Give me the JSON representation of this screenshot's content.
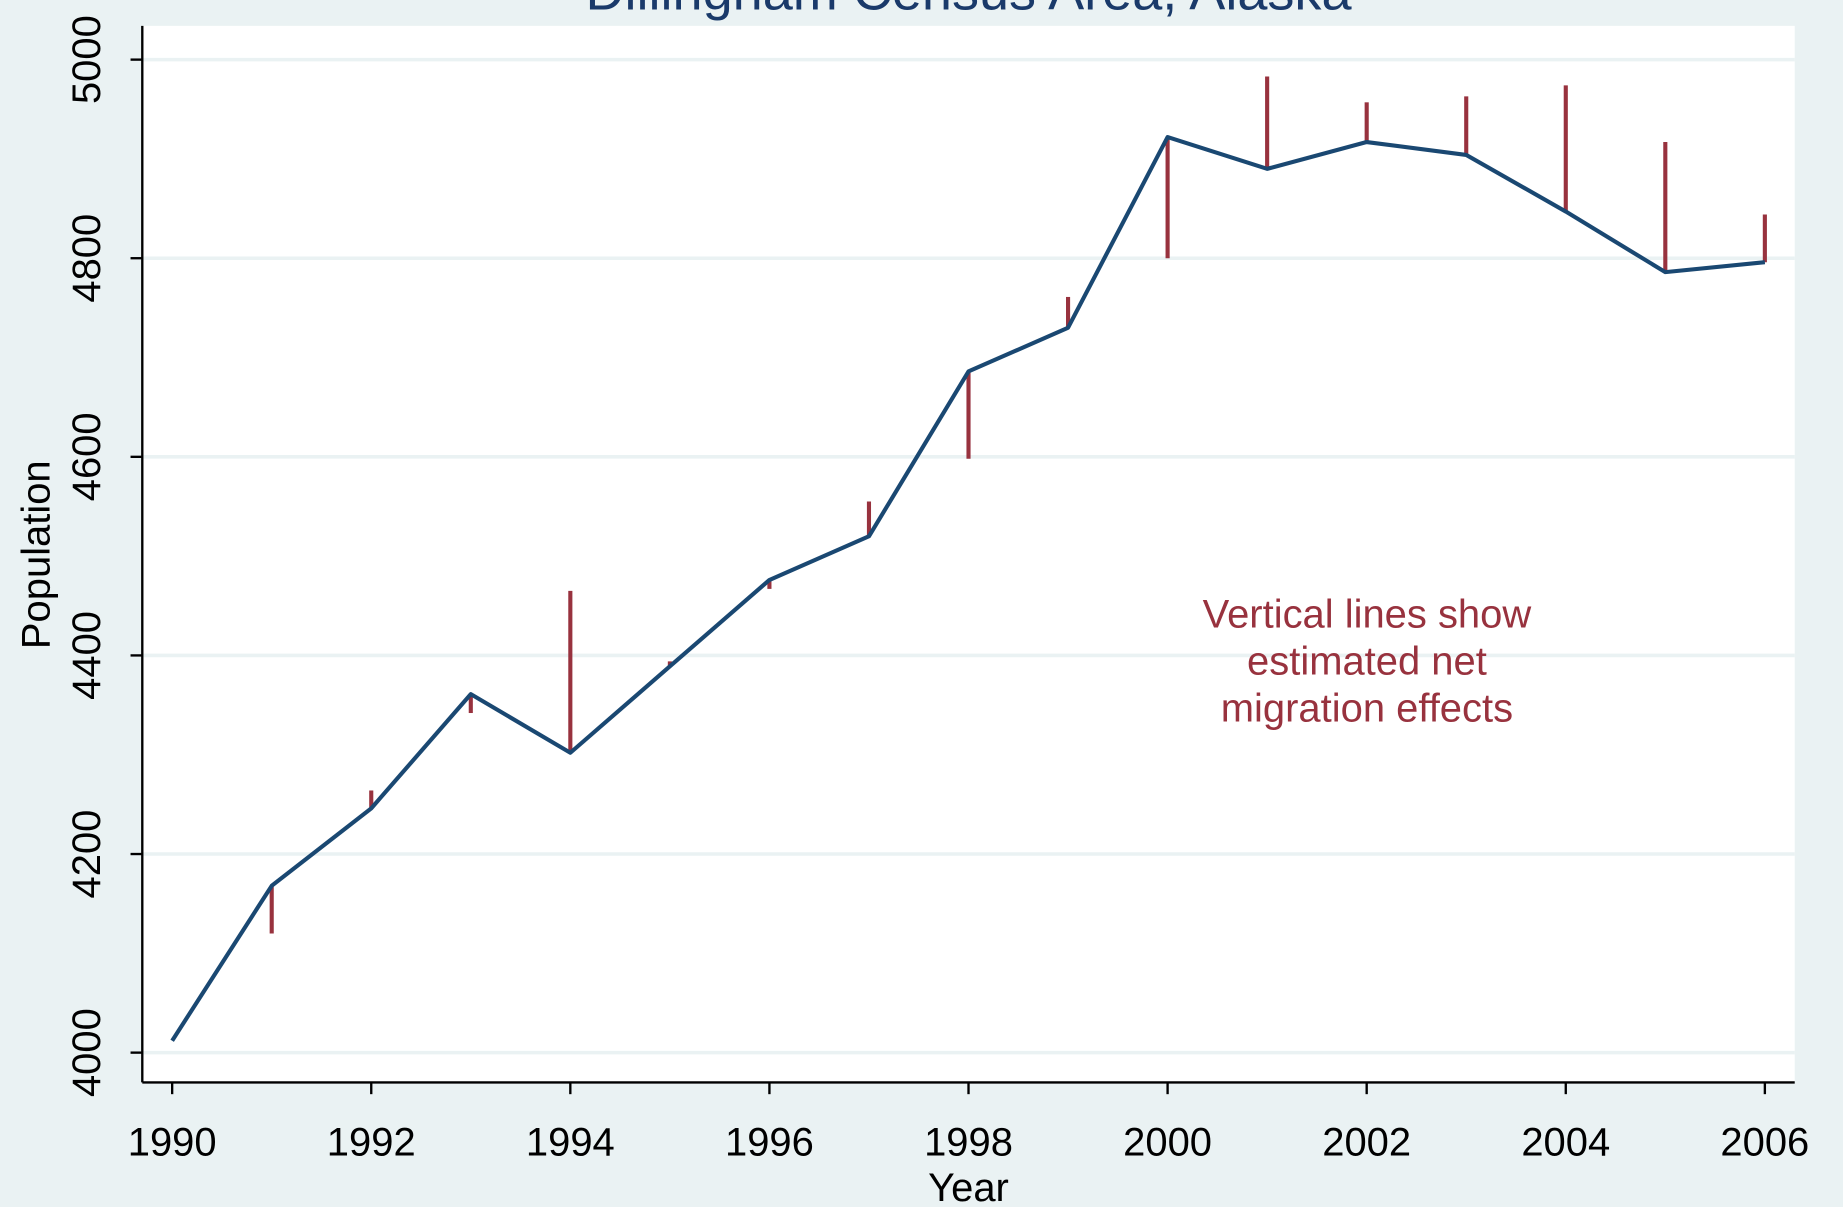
{
  "chart_data": {
    "type": "line",
    "title": "Dillingham Census Area, Alaska",
    "x_label": "Year",
    "y_label": "Population",
    "annotation": [
      "Vertical lines show",
      "estimated net",
      "migration effects"
    ],
    "annotation_color": "#98323e",
    "x": [
      1990,
      1991,
      1992,
      1993,
      1994,
      1995,
      1996,
      1997,
      1998,
      1999,
      2000,
      2001,
      2002,
      2003,
      2004,
      2005,
      2006
    ],
    "series": [
      {
        "color": "#1a4872",
        "style": "line",
        "values": [
          4012,
          4168,
          4246,
          4361,
          4302,
          4389,
          4476,
          4520,
          4686,
          4730,
          4922,
          4890,
          4917,
          4904,
          4847,
          4786,
          4796
        ]
      },
      {
        "color": "#98323e",
        "style": "spike",
        "values": [
          null,
          4120,
          4264,
          4342,
          4465,
          4394,
          4467,
          4555,
          4598,
          4761,
          4800,
          4983,
          4957,
          4963,
          4974,
          4917,
          4844
        ]
      }
    ],
    "xlim": [
      1989.7,
      2006.3
    ],
    "ylim": [
      3970,
      5034
    ],
    "xticks": [
      1990,
      1992,
      1994,
      1996,
      1998,
      2000,
      2002,
      2004,
      2006
    ],
    "yticks": [
      4000,
      4200,
      4400,
      4600,
      4800,
      5000
    ],
    "grid": true
  }
}
